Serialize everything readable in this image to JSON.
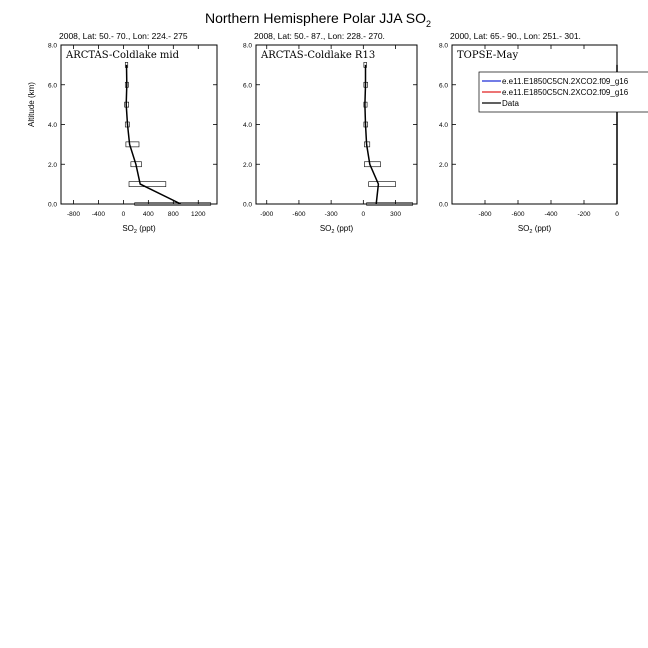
{
  "figure": {
    "title": "Northern Hemisphere Polar JJA SO",
    "title_sub": "2"
  },
  "chart_data": [
    {
      "type": "line",
      "header": "2008, Lat:  50.- 70., Lon: 224.- 275",
      "panel_label": "ARCTAS-Coldlake mid",
      "xlabel": "SO",
      "xlabel_sub": "2",
      "xlabel_unit": " (ppt)",
      "ylabel": "Altitude (km)",
      "xlim": [
        -1000,
        1500
      ],
      "ylim": [
        0,
        8
      ],
      "xticks": [
        -800,
        -400,
        0,
        400,
        800,
        1200
      ],
      "yticks": [
        0,
        2,
        4,
        6,
        8
      ],
      "ytick_labels": [
        "0.0",
        "2.0",
        "4.0",
        "6.0",
        "8.0"
      ],
      "series": [
        {
          "name": "Data",
          "color": "#000000",
          "x": [
            920,
            270,
            200,
            100,
            65,
            45,
            55,
            50
          ],
          "y": [
            0,
            1,
            2,
            3,
            4,
            5,
            6,
            7
          ],
          "range": [
            [
              180,
              1400
            ],
            [
              90,
              680
            ],
            [
              120,
              290
            ],
            [
              40,
              250
            ],
            [
              30,
              95
            ],
            [
              20,
              85
            ],
            [
              30,
              80
            ],
            [
              30,
              70
            ]
          ]
        }
      ]
    },
    {
      "type": "line",
      "header": "2008, Lat:  50.- 87., Lon: 228.- 270.",
      "panel_label": "ARCTAS-Coldlake R13",
      "xlabel": "SO",
      "xlabel_sub": "2",
      "xlabel_unit": " (ppt)",
      "ylabel": "",
      "xlim": [
        -1000,
        500
      ],
      "ylim": [
        0,
        8
      ],
      "xticks": [
        -900,
        -600,
        -300,
        0,
        300
      ],
      "yticks": [
        0,
        2,
        4,
        6,
        8
      ],
      "ytick_labels": [
        "0.0",
        "2.0",
        "4.0",
        "6.0",
        "8.0"
      ],
      "series": [
        {
          "name": "Data",
          "color": "#000000",
          "x": [
            120,
            140,
            60,
            30,
            20,
            15,
            20,
            20
          ],
          "y": [
            0,
            1,
            2,
            3,
            4,
            5,
            6,
            7
          ],
          "range": [
            [
              30,
              460
            ],
            [
              50,
              300
            ],
            [
              10,
              160
            ],
            [
              10,
              60
            ],
            [
              5,
              40
            ],
            [
              5,
              35
            ],
            [
              5,
              40
            ],
            [
              5,
              30
            ]
          ]
        }
      ]
    },
    {
      "type": "line",
      "header": "2000, Lat: 65.- 90., Lon: 251.- 301.",
      "panel_label": "TOPSE-May",
      "xlabel": "SO",
      "xlabel_sub": "2",
      "xlabel_unit": " (ppt)",
      "ylabel": "",
      "xlim": [
        -1000,
        0
      ],
      "ylim": [
        0,
        8
      ],
      "xticks": [
        -800,
        -600,
        -400,
        -200,
        0
      ],
      "yticks": [
        0,
        2,
        4,
        6,
        8
      ],
      "ytick_labels": [
        "0.0",
        "2.0",
        "4.0",
        "6.0",
        "8.0"
      ],
      "legend": {
        "placement": "top-right",
        "entries": [
          {
            "name": "e.e11.E1850C5CN.2XCO2.f09_g16",
            "color": "#1f2fd6"
          },
          {
            "name": "e.e11.E1850C5CN.2XCO2.f09_g16",
            "color": "#e02020"
          },
          {
            "name": "Data",
            "color": "#000000"
          }
        ]
      },
      "series": [
        {
          "name": "Data",
          "color": "#000000",
          "x": [
            0,
            0,
            0,
            0,
            0,
            0,
            0,
            0
          ],
          "y": [
            0,
            1,
            2,
            3,
            4,
            5,
            6,
            7
          ],
          "range": []
        }
      ]
    }
  ]
}
